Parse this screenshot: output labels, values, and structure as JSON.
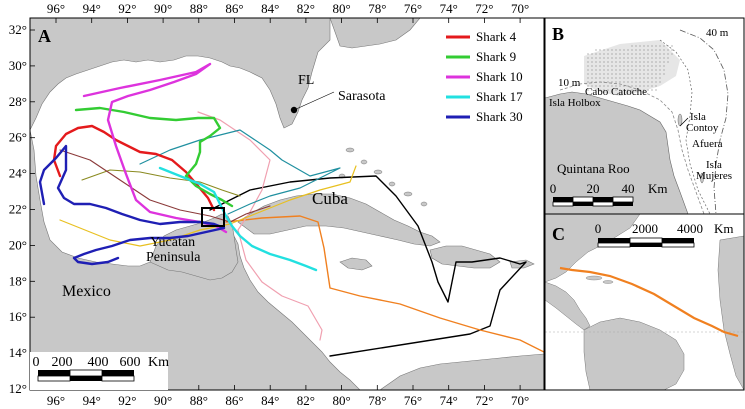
{
  "colors": {
    "land": "#c8c8c8",
    "water": "#ffffff",
    "border": "#000000",
    "shark4": "#e41a1c",
    "shark9": "#33cc33",
    "shark10": "#dd33dd",
    "shark17": "#22e0e0",
    "shark30": "#1f1fb4",
    "black_track": "#000000",
    "orange_track": "#f08020",
    "pink_track": "#f0a0b0",
    "teal_track": "#2090a0",
    "olive_track": "#8a8a20",
    "yellow_track": "#e8c020",
    "brown_track": "#8b3a3a"
  },
  "panel_a": {
    "label": "A",
    "top_lon_ticks": [
      "96°",
      "94°",
      "92°",
      "90°",
      "88°",
      "86°",
      "84°",
      "82°",
      "80°",
      "78°",
      "76°",
      "74°",
      "72°",
      "70°"
    ],
    "bottom_lon_ticks": [
      "96°",
      "94°",
      "92°",
      "90°",
      "88°",
      "86°",
      "84°",
      "82°",
      "80°",
      "78°",
      "76°",
      "74°",
      "72°",
      "70°"
    ],
    "lat_ticks": [
      "32°",
      "30°",
      "28°",
      "26°",
      "24°",
      "22°",
      "20°",
      "18°",
      "16°",
      "14°",
      "12°"
    ],
    "legend": [
      {
        "label": "Shark 4",
        "color_key": "shark4"
      },
      {
        "label": "Shark 9",
        "color_key": "shark9"
      },
      {
        "label": "Shark 10",
        "color_key": "shark10"
      },
      {
        "label": "Shark 17",
        "color_key": "shark17"
      },
      {
        "label": "Shark 30",
        "color_key": "shark30"
      }
    ],
    "place_labels": {
      "fl": "FL",
      "sarasota": "Sarasota",
      "cuba": "Cuba",
      "yucatan_line1": "Yucatan",
      "yucatan_line2": "Peninsula",
      "mexico": "Mexico"
    },
    "scale_bar": {
      "ticks": [
        "0",
        "200",
        "400",
        "600"
      ],
      "unit": "Km"
    }
  },
  "panel_b": {
    "label": "B",
    "labels": {
      "m40": "40 m",
      "m10": "10 m",
      "cabo": "Cabo Catoche",
      "holbox": "Isla Holbox",
      "contoy1": "Isla",
      "contoy2": "Contoy",
      "afuera": "Afuera",
      "mujeres1": "Isla",
      "mujeres2": "Mujeres",
      "quintana": "Quintana Roo"
    },
    "scale_bar": {
      "ticks": [
        "0",
        "20",
        "40"
      ],
      "unit": "Km"
    }
  },
  "panel_c": {
    "label": "C",
    "scale_bar": {
      "ticks": [
        "0",
        "2000",
        "4000"
      ],
      "unit": "Km"
    }
  }
}
